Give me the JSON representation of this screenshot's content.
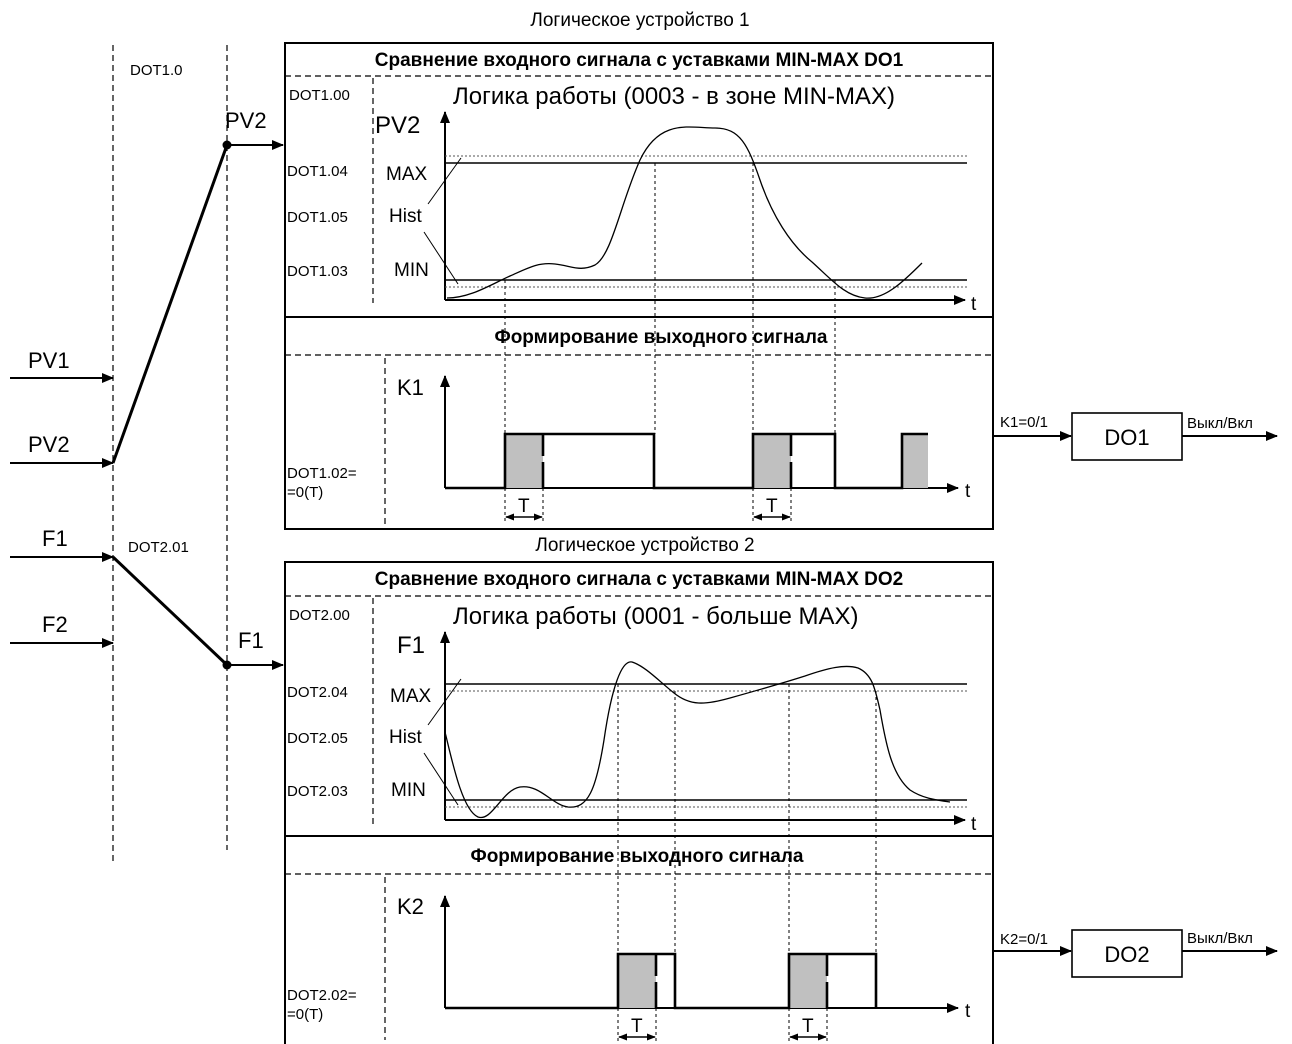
{
  "inputs": {
    "pv1": "PV1",
    "pv2": "PV2",
    "f1": "F1",
    "f2": "F2"
  },
  "selectors": {
    "dot1_0": "DOT1.0",
    "dot2_01": "DOT2.01",
    "out1": "PV2",
    "out2": "F1"
  },
  "device1": {
    "caption": "Логическое устройство 1",
    "header": "Сравнение входного сигнала с уставками MIN-MAX  DO1",
    "logic_param": "DOT1.00",
    "logic_title": "Логика работы (0003 - в зоне MIN-MAX)",
    "y_axis": "PV2",
    "x_axis": "t",
    "max_param": "DOT1.04",
    "max_label": "MAX",
    "hist_param": "DOT1.05",
    "hist_label": "Hist",
    "min_param": "DOT1.03",
    "min_label": "MIN",
    "output_header": "Формирование выходного сигнала",
    "out_y_axis": "K1",
    "out_x_axis": "t",
    "delay_param_1": "DOT1.02=",
    "delay_param_2": "=0(T)",
    "delay_label": "T",
    "relay_input": "K1=0/1",
    "relay": "DO1",
    "relay_output": "Выкл/Вкл"
  },
  "device2": {
    "caption": "Логическое устройство 2",
    "header": "Сравнение входного сигнала с уставками MIN-MAX  DO2",
    "logic_param": "DOT2.00",
    "logic_title": "Логика работы (0001 - больше MAX)",
    "y_axis": "F1",
    "x_axis": "t",
    "max_param": "DOT2.04",
    "max_label": "MAX",
    "hist_param": "DOT2.05",
    "hist_label": "Hist",
    "min_param": "DOT2.03",
    "min_label": "MIN",
    "output_header": "Формирование выходного сигнала",
    "out_y_axis": "K2",
    "out_x_axis": "t",
    "delay_param_1": "DOT2.02=",
    "delay_param_2": "=0(T)",
    "delay_label": "T",
    "relay_input": "K2=0/1",
    "relay": "DO2",
    "relay_output": "Выкл/Вкл"
  }
}
